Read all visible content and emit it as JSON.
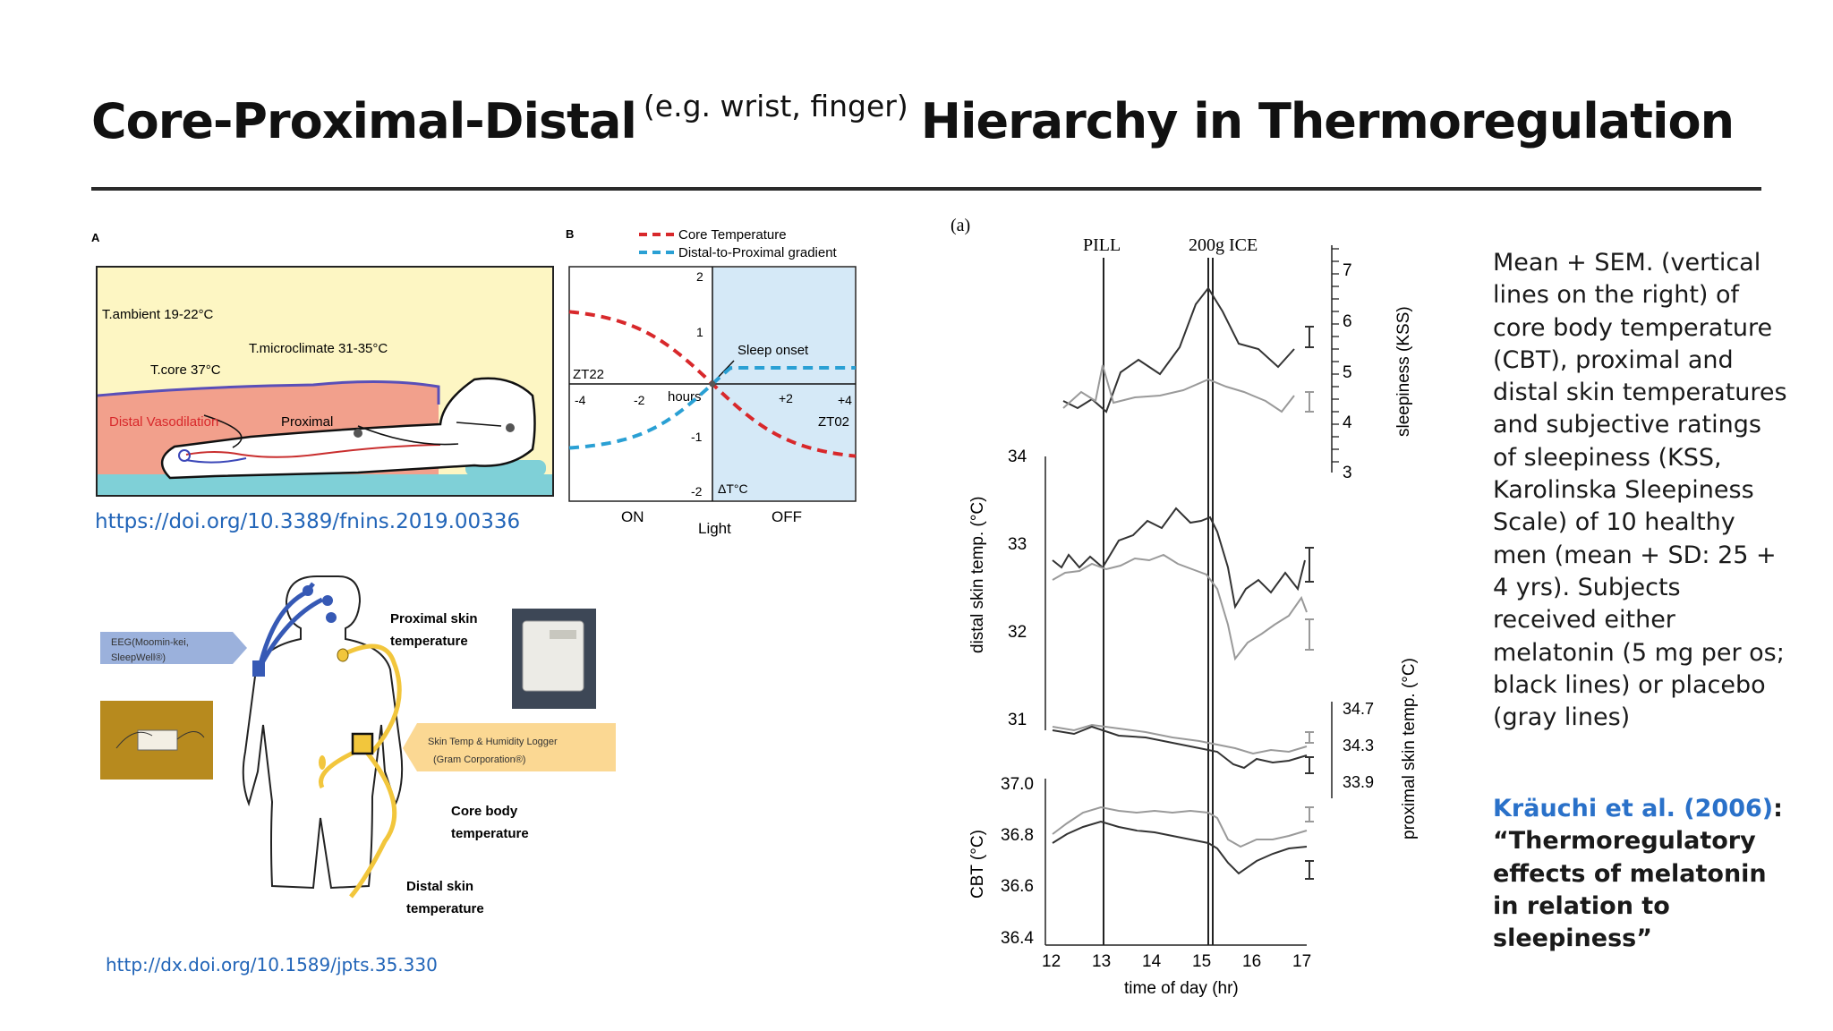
{
  "title": {
    "part1": "Core-Proximal-Distal",
    "parenthetical": "(e.g. wrist, finger)",
    "part2": "Hierarchy in Thermoregulation"
  },
  "fig_a": {
    "panel": "A",
    "ambient": "T.ambient 19-22°C",
    "microclimate": "T.microclimate 31-35°C",
    "core": "T.core 37°C",
    "distal_vasodilation": "Distal Vasodilation",
    "proximal": "Proximal"
  },
  "fig_b": {
    "panel": "B",
    "legend_core": "Core Temperature",
    "legend_gradient": "Distal-to-Proximal gradient",
    "y_ticks": [
      "2",
      "1",
      "-1",
      "-2"
    ],
    "x_ticks": [
      "-4",
      "-2",
      "+2",
      "+4"
    ],
    "hours": "hours",
    "zt22": "ZT22",
    "zt02": "ZT02",
    "sleep_onset": "Sleep onset",
    "delta_t": "ΔT°C",
    "on": "ON",
    "light": "Light",
    "off": "OFF"
  },
  "link1": "https://doi.org/10.3389/fnins.2019.00336",
  "fig_c": {
    "eeg_box": [
      "EEG(Moomin-kei,",
      "SleepWell®)"
    ],
    "proximal_label": [
      "Proximal skin",
      "temperature"
    ],
    "logger_box": [
      "Skin Temp & Humidity Logger",
      "(Gram Corporation®)"
    ],
    "core_label": [
      "Core body",
      "temperature"
    ],
    "distal_label": [
      "Distal skin",
      "temperature"
    ]
  },
  "link2": "http://dx.doi.org/10.1589/jpts.35.330",
  "fig_d": {
    "panel": "(a)",
    "pill": "PILL",
    "ice": "200g ICE",
    "kss_label": "sleepiness (KSS)",
    "kss_ticks": [
      "7",
      "6",
      "5",
      "4",
      "3"
    ],
    "distal_label": "distal skin temp. (°C)",
    "distal_ticks": [
      "34",
      "33",
      "32",
      "31"
    ],
    "proximal_label": "proximal skin temp. (°C)",
    "proximal_ticks": [
      "34.7",
      "34.3",
      "33.9"
    ],
    "cbt_label": "CBT (°C)",
    "cbt_ticks": [
      "37.0",
      "36.8",
      "36.6",
      "36.4"
    ],
    "x_ticks": [
      "12",
      "13",
      "14",
      "15",
      "16",
      "17"
    ],
    "xlabel": "time of day (hr)"
  },
  "side_text": "Mean + SEM. (vertical lines on the right) of core body temperature (CBT), proximal and distal skin temperatures and subjective ratings of sleepiness (KSS, Karolinska Sleepiness Scale) of 10 healthy men (mean + SD: 25 + 4 yrs). Subjects received either melatonin (5 mg per os; black lines) or placebo (gray lines)",
  "citation": {
    "author": "Kräuchi et al. (2006)",
    "colon": ":",
    "title": "“Thermoregulatory effects of melatonin in relation to sleepiness”"
  },
  "colors": {
    "link": "#2265b8",
    "core_red": "#d8282b",
    "gradient_blue": "#2aa0d4",
    "ambient_yellow": "#fdf6c3",
    "light_blue": "#d5e9f7"
  }
}
